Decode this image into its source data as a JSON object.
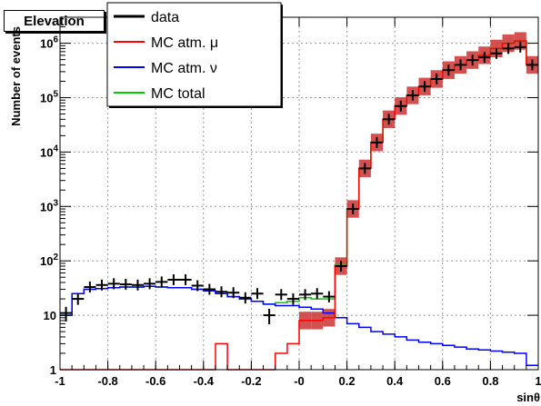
{
  "chart_data": {
    "type": "line",
    "title": "Elevation",
    "xlabel": "sinθ",
    "ylabel": "Number of events",
    "xlim": [
      -1,
      1
    ],
    "ylim": [
      1,
      3000000
    ],
    "y_scale": "log",
    "grid": true,
    "legend_position": "top-left",
    "x_ticks": [
      -1,
      -0.8,
      -0.6,
      -0.4,
      -0.2,
      0,
      0.2,
      0.4,
      0.6,
      0.8,
      1
    ],
    "x_tick_labels": [
      "-1",
      "-0.8",
      "-0.6",
      "-0.4",
      "-0.2",
      "-0",
      "0.2",
      "0.4",
      "0.6",
      "0.8",
      "1"
    ],
    "y_ticks": [
      1,
      10,
      100,
      1000,
      10000,
      100000,
      1000000
    ],
    "y_tick_labels": [
      {
        "base": "1",
        "exp": ""
      },
      {
        "base": "10",
        "exp": ""
      },
      {
        "base": "10",
        "exp": "2"
      },
      {
        "base": "10",
        "exp": "3"
      },
      {
        "base": "10",
        "exp": "4"
      },
      {
        "base": "10",
        "exp": "5"
      },
      {
        "base": "10",
        "exp": "6"
      }
    ],
    "bin_edges": [
      -1,
      -0.95,
      -0.9,
      -0.85,
      -0.8,
      -0.75,
      -0.7,
      -0.65,
      -0.6,
      -0.55,
      -0.5,
      -0.45,
      -0.4,
      -0.35,
      -0.3,
      -0.25,
      -0.2,
      -0.15,
      -0.1,
      -0.05,
      0,
      0.05,
      0.1,
      0.15,
      0.2,
      0.25,
      0.3,
      0.35,
      0.4,
      0.45,
      0.5,
      0.55,
      0.6,
      0.65,
      0.7,
      0.75,
      0.8,
      0.85,
      0.9,
      0.95,
      1
    ],
    "series": [
      {
        "name": "data",
        "color": "#000000",
        "style": "points",
        "values": [
          11,
          20,
          33,
          36,
          38,
          37,
          36,
          38,
          41,
          45,
          45,
          35,
          30,
          27,
          26,
          21,
          25,
          10,
          24,
          20,
          24,
          25,
          22,
          80,
          900,
          5000,
          15000,
          40000,
          70000,
          110000,
          160000,
          220000,
          320000,
          400000,
          490000,
          550000,
          650000,
          800000,
          850000,
          400000
        ]
      },
      {
        "name": "MC atm. μ",
        "color": "#ff0000",
        "style": "step",
        "band_color": "#cc3333",
        "band_rel_error": 0.45,
        "values": [
          1,
          1,
          1,
          1,
          1,
          1,
          1,
          1,
          1,
          1,
          1,
          1,
          1,
          3,
          1,
          1,
          1,
          1,
          2,
          3,
          8,
          8,
          9,
          80,
          900,
          5000,
          15000,
          40000,
          70000,
          110000,
          160000,
          220000,
          320000,
          400000,
          490000,
          600000,
          800000,
          1000000,
          1100000,
          400000
        ]
      },
      {
        "name": "MC atm. ν",
        "color": "#0000ff",
        "style": "step",
        "values": [
          10,
          25,
          30,
          31,
          32,
          33,
          33,
          34,
          33,
          32,
          32,
          30,
          28,
          25,
          22,
          20,
          18,
          16,
          15,
          15,
          14,
          13,
          11,
          9,
          7,
          6,
          5,
          4.5,
          4,
          3.5,
          3.2,
          3,
          2.8,
          2.6,
          2.4,
          2.3,
          2.2,
          2.1,
          2,
          1.2
        ]
      },
      {
        "name": "MC total",
        "color": "#00cc00",
        "style": "step",
        "values": [
          10,
          25,
          30,
          31,
          32,
          33,
          33,
          34,
          33,
          32,
          32,
          30,
          28,
          27,
          22,
          20,
          18,
          16,
          17,
          18,
          21,
          20,
          20,
          85,
          900,
          5000,
          15000,
          40000,
          70000,
          110000,
          160000,
          220000,
          320000,
          400000,
          490000,
          600000,
          800000,
          1000000,
          1100000,
          400000
        ]
      }
    ]
  }
}
